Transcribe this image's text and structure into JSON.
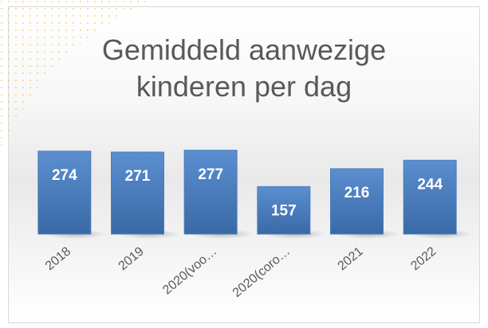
{
  "chart_data": {
    "type": "bar",
    "title": "Gemiddeld aanwezige kinderen per dag",
    "categories": [
      "2018",
      "2019",
      "2020(voo…",
      "2020(coro…",
      "2021",
      "2022"
    ],
    "values": [
      274,
      271,
      277,
      157,
      216,
      244
    ],
    "color": "#4a7ebb",
    "ylim": [
      0,
      300
    ]
  }
}
